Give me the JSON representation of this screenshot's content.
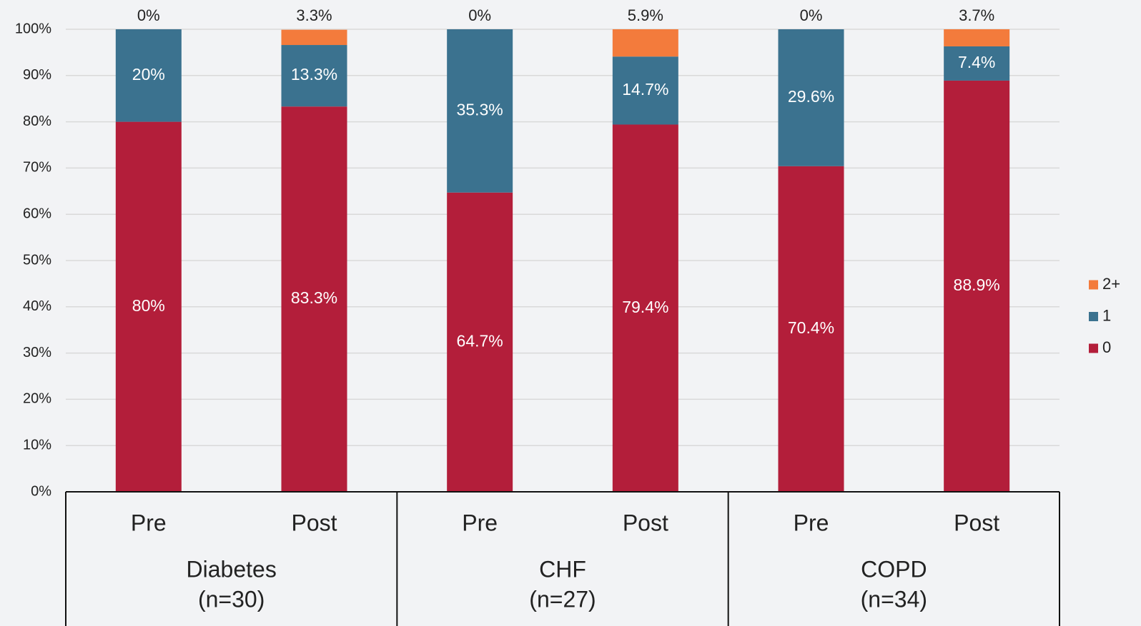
{
  "chart_data": {
    "type": "stacked_bar",
    "categories": [
      "Pre",
      "Post",
      "Pre",
      "Post",
      "Pre",
      "Post"
    ],
    "groups": [
      {
        "name": "Diabetes",
        "n": "(n=30)"
      },
      {
        "name": "CHF",
        "n": "(n=27)"
      },
      {
        "name": "COPD",
        "n": "(n=34)"
      }
    ],
    "series": [
      {
        "name": "0",
        "color": "#b31e3a",
        "values": [
          80,
          83.3,
          64.7,
          79.4,
          70.4,
          88.9
        ],
        "value_labels": [
          "80%",
          "83.3%",
          "64.7%",
          "79.4%",
          "70.4%",
          "88.9%"
        ]
      },
      {
        "name": "1",
        "color": "#3b728f",
        "values": [
          20,
          13.3,
          35.3,
          14.7,
          29.6,
          7.4
        ],
        "value_labels": [
          "20%",
          "13.3%",
          "35.3%",
          "14.7%",
          "29.6%",
          "7.4%"
        ]
      },
      {
        "name": "2+",
        "color": "#f37b3c",
        "values": [
          0,
          3.3,
          0,
          5.9,
          0,
          3.7
        ],
        "value_labels": [
          "0%",
          "3.3%",
          "0%",
          "5.9%",
          "0%",
          "3.7%"
        ]
      }
    ],
    "ylim": [
      0,
      100
    ],
    "yticks": [
      {
        "value": 0,
        "label": "0%"
      },
      {
        "value": 10,
        "label": "10%"
      },
      {
        "value": 20,
        "label": "20%"
      },
      {
        "value": 30,
        "label": "30%"
      },
      {
        "value": 40,
        "label": "40%"
      },
      {
        "value": 50,
        "label": "50%"
      },
      {
        "value": 60,
        "label": "60%"
      },
      {
        "value": 70,
        "label": "70%"
      },
      {
        "value": 80,
        "label": "80%"
      },
      {
        "value": 90,
        "label": "90%"
      },
      {
        "value": 100,
        "label": "100%"
      }
    ],
    "grid": true,
    "legend": "right"
  }
}
